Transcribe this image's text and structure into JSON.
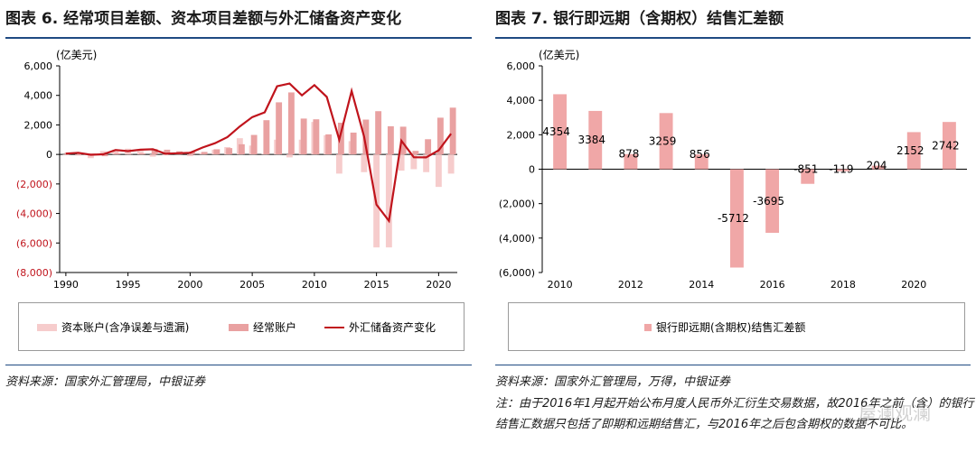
{
  "left_panel": {
    "title": "图表 6. 经常项目差额、资本项目差额与外汇储备资产变化",
    "source": "资料来源：国家外汇管理局，中银证券"
  },
  "right_panel": {
    "title": "图表 7. 银行即远期（含期权）结售汇差额",
    "source": "资料来源：国家外汇管理局，万得，中银证券",
    "note": "注：由于2016年1月起开始公布月度人民币外汇衍生交易数据，故2016年之前（含）的银行结售汇数据只包括了即期和远期结售汇，与2016年之后包含期权的数据不可比。"
  },
  "watermark": "屋澜观澜",
  "colors": {
    "title_rule": "#1f4a82",
    "capital": "#f6cccc",
    "current": "#e9a1a1",
    "reserve": "#c0141c",
    "bank": "#f0a7a7"
  },
  "chart_data": [
    {
      "type": "bar",
      "unit_label": "(亿美元)",
      "ylim": [
        -8000,
        6000
      ],
      "yticks": [
        6000,
        4000,
        2000,
        0,
        -2000,
        -4000,
        -6000,
        -8000
      ],
      "ytick_labels": [
        "6,000",
        "4,000",
        "2,000",
        "0",
        "(2,000)",
        "(4,000)",
        "(6,000)",
        "(8,000)"
      ],
      "x": [
        1990,
        1991,
        1992,
        1993,
        1994,
        1995,
        1996,
        1997,
        1998,
        1999,
        2000,
        2001,
        2002,
        2003,
        2004,
        2005,
        2006,
        2007,
        2008,
        2009,
        2010,
        2011,
        2012,
        2013,
        2014,
        2015,
        2016,
        2017,
        2018,
        2019,
        2020,
        2021
      ],
      "xtick_labels": [
        "1990",
        "1995",
        "2000",
        "2005",
        "2010",
        "2015",
        "2020"
      ],
      "xtick_years": [
        1990,
        1995,
        2000,
        2005,
        2010,
        2015,
        2020
      ],
      "series": [
        {
          "name": "资本账户(含净误差与遗漏)",
          "kind": "bar",
          "values": [
            -30,
            -80,
            -250,
            230,
            330,
            390,
            240,
            -150,
            -60,
            50,
            -120,
            90,
            320,
            500,
            1100,
            600,
            40,
            1000,
            -200,
            1000,
            2200,
            1300,
            -1300,
            900,
            -1200,
            -6300,
            -6300,
            -1100,
            -1000,
            -1200,
            -2200,
            -1300
          ]
        },
        {
          "name": "经常账户",
          "kind": "bar",
          "values": [
            120,
            130,
            60,
            -120,
            80,
            20,
            70,
            370,
            320,
            210,
            200,
            170,
            350,
            430,
            690,
            1320,
            2320,
            3530,
            4200,
            2430,
            2380,
            1360,
            2150,
            1480,
            2360,
            2930,
            1910,
            1880,
            240,
            1030,
            2490,
            3170
          ]
        },
        {
          "name": "外汇储备资产变化",
          "kind": "line",
          "values": [
            60,
            110,
            -20,
            10,
            300,
            220,
            320,
            350,
            50,
            80,
            110,
            470,
            760,
            1170,
            1900,
            2530,
            2850,
            4620,
            4800,
            4000,
            4700,
            3900,
            1000,
            4300,
            1200,
            -3400,
            -4500,
            930,
            -190,
            -200,
            280,
            1400
          ]
        }
      ]
    },
    {
      "type": "bar",
      "unit_label": "(亿美元)",
      "ylim": [
        -6000,
        6000
      ],
      "yticks": [
        6000,
        4000,
        2000,
        0,
        -2000,
        -4000,
        -6000
      ],
      "ytick_labels": [
        "6,000",
        "4,000",
        "2,000",
        "0",
        "(2,000)",
        "(4,000)",
        "(6,000)"
      ],
      "categories": [
        "2010",
        "2011",
        "2012",
        "2013",
        "2014",
        "2015",
        "2016",
        "2017",
        "2018",
        "2019",
        "2020",
        "2021"
      ],
      "xtick_labels": [
        "2010",
        "2012",
        "2014",
        "2016",
        "2018",
        "2020"
      ],
      "xtick_index": [
        0,
        2,
        4,
        6,
        8,
        10
      ],
      "series": [
        {
          "name": "银行即远期(含期权)结售汇差额",
          "values": [
            4354,
            3384,
            878,
            3259,
            856,
            -5712,
            -3695,
            -851,
            -119,
            204,
            2152,
            2742
          ],
          "labels": [
            "4354",
            "3384",
            "878",
            "3259",
            "856",
            "-5712",
            "-3695",
            "-851",
            "-119",
            "204",
            "2152",
            "2742"
          ]
        }
      ]
    }
  ]
}
